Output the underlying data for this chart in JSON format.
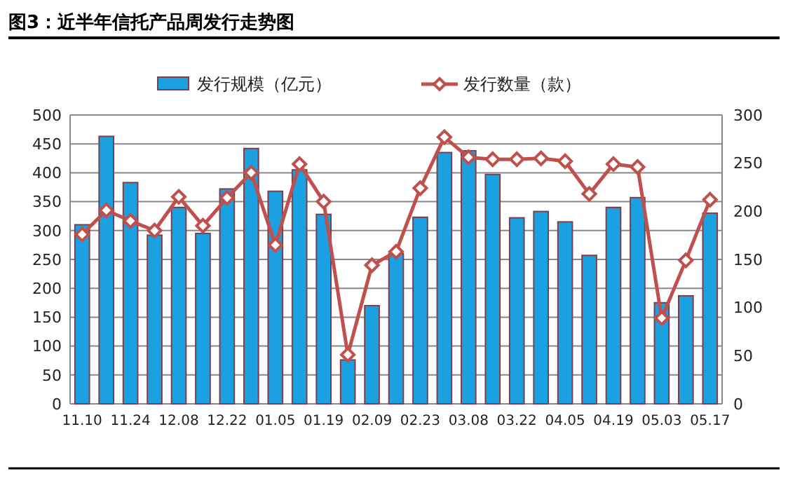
{
  "chart_data": {
    "type": "bar",
    "title": "图3：近半年信托产品周发行走势图",
    "categories": [
      "11.10",
      null,
      "11.24",
      null,
      "12.08",
      null,
      "12.22",
      null,
      "01.05",
      null,
      "01.19",
      null,
      "02.09",
      null,
      "02.23",
      null,
      "03.08",
      null,
      "03.22",
      null,
      "04.05",
      null,
      "04.19",
      null,
      "05.03",
      null,
      "05.17"
    ],
    "series": [
      {
        "name": "发行规模（亿元）",
        "color": "#1ba1e2",
        "values": [
          310,
          463,
          383,
          292,
          340,
          295,
          372,
          442,
          368,
          405,
          328,
          76,
          170,
          260,
          323,
          435,
          438,
          397,
          322,
          333,
          315,
          257,
          340,
          357,
          175,
          187,
          330
        ]
      },
      {
        "name": "发行数量（款）",
        "type": "line",
        "axis": "y2",
        "color": "#c0504d",
        "marker": "diamond",
        "values": [
          176,
          201,
          190,
          180,
          215,
          185,
          214,
          240,
          165,
          249,
          210,
          51,
          144,
          158,
          224,
          277,
          256,
          254,
          254,
          255,
          252,
          218,
          249,
          246,
          89,
          149,
          212
        ]
      }
    ],
    "ylim": [
      0,
      500
    ],
    "yticks": [
      0,
      50,
      100,
      150,
      200,
      250,
      300,
      350,
      400,
      450,
      500
    ],
    "y2lim": [
      0,
      300
    ],
    "y2ticks": [
      0,
      50,
      100,
      150,
      200,
      250,
      300
    ],
    "grid": "y",
    "legend": "top"
  }
}
